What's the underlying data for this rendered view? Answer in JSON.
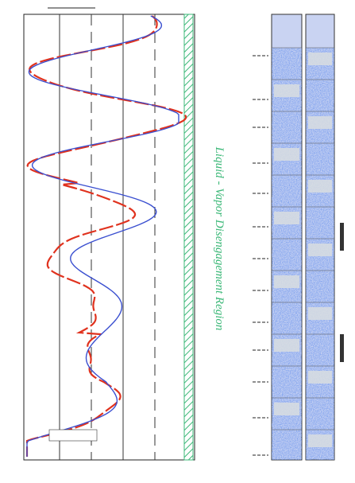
{
  "figure": {
    "region_label": "Liquid - Vapor Disengagement Region"
  }
}
